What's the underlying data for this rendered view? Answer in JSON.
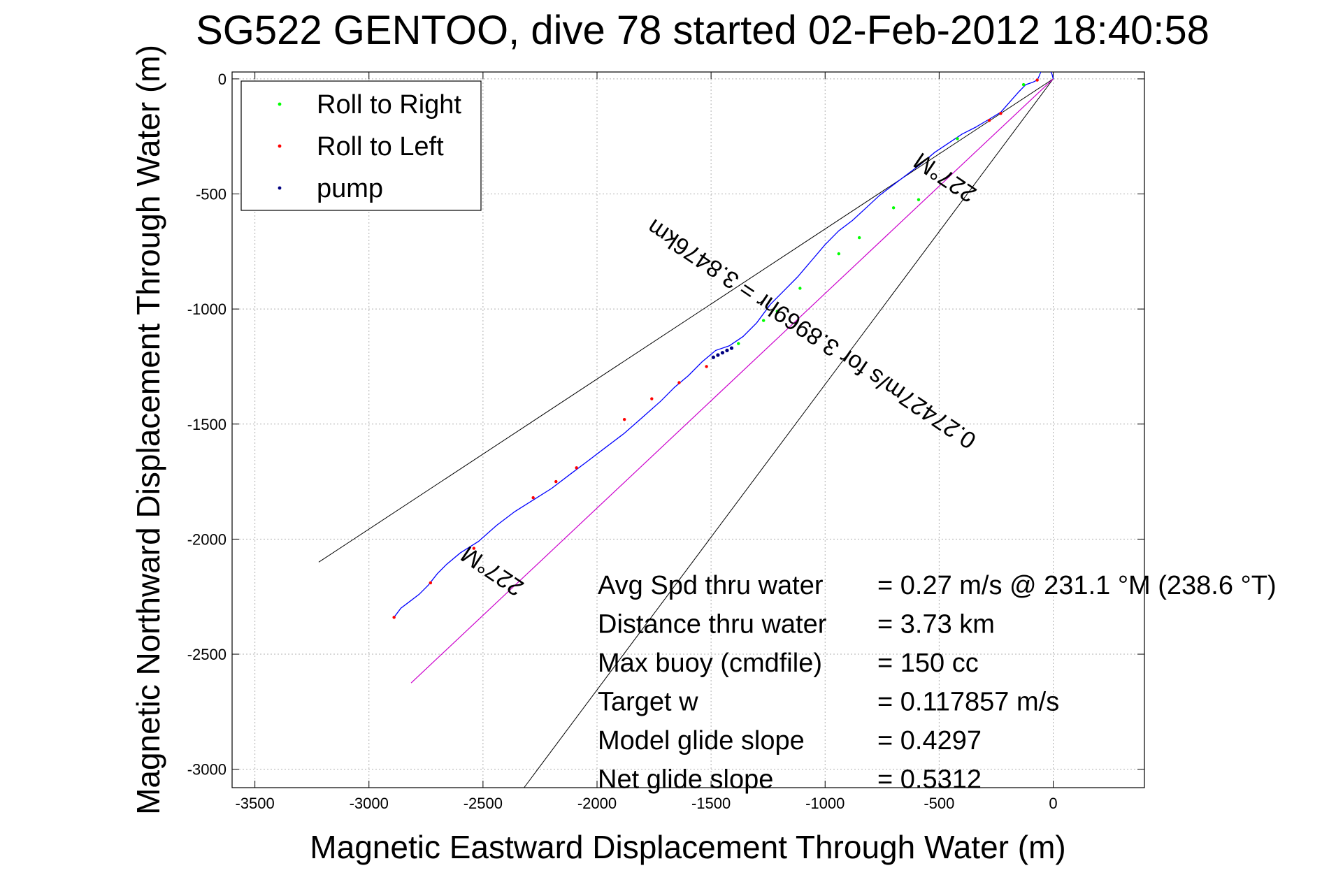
{
  "chart_data": {
    "type": "line",
    "title": "SG522 GENTOO, dive 78 started 02-Feb-2012 18:40:58",
    "xlabel": "Magnetic Eastward Displacement Through Water (m)",
    "ylabel": "Magnetic Northward Displacement Through Water (m)",
    "xlim": [
      -3600,
      400
    ],
    "ylim": [
      -3080,
      30
    ],
    "xticks": [
      -3500,
      -3000,
      -2500,
      -2000,
      -1500,
      -1000,
      -500,
      0
    ],
    "yticks": [
      0,
      -500,
      -1000,
      -1500,
      -2000,
      -2500,
      -3000
    ],
    "grid": true,
    "legend_position": "top-left",
    "legend": [
      {
        "label": "Roll to Right",
        "color": "#00ff00"
      },
      {
        "label": "Roll to Left",
        "color": "#ff0000"
      },
      {
        "label": "pump",
        "color": "#000080"
      }
    ],
    "track": {
      "color": "#0000ff",
      "points": [
        [
          0,
          0
        ],
        [
          -5,
          20
        ],
        [
          -15,
          40
        ],
        [
          -30,
          50
        ],
        [
          -45,
          45
        ],
        [
          -55,
          30
        ],
        [
          -60,
          15
        ],
        [
          -70,
          -5
        ],
        [
          -90,
          -15
        ],
        [
          -120,
          -25
        ],
        [
          -150,
          -55
        ],
        [
          -190,
          -100
        ],
        [
          -230,
          -145
        ],
        [
          -280,
          -175
        ],
        [
          -340,
          -210
        ],
        [
          -400,
          -240
        ],
        [
          -460,
          -280
        ],
        [
          -520,
          -320
        ],
        [
          -580,
          -370
        ],
        [
          -640,
          -415
        ],
        [
          -700,
          -460
        ],
        [
          -760,
          -505
        ],
        [
          -820,
          -560
        ],
        [
          -880,
          -615
        ],
        [
          -940,
          -660
        ],
        [
          -1000,
          -720
        ],
        [
          -1060,
          -790
        ],
        [
          -1120,
          -860
        ],
        [
          -1180,
          -920
        ],
        [
          -1240,
          -980
        ],
        [
          -1300,
          -1060
        ],
        [
          -1360,
          -1120
        ],
        [
          -1420,
          -1160
        ],
        [
          -1480,
          -1180
        ],
        [
          -1540,
          -1230
        ],
        [
          -1600,
          -1290
        ],
        [
          -1660,
          -1340
        ],
        [
          -1720,
          -1400
        ],
        [
          -1800,
          -1470
        ],
        [
          -1880,
          -1540
        ],
        [
          -1960,
          -1600
        ],
        [
          -2040,
          -1660
        ],
        [
          -2120,
          -1720
        ],
        [
          -2200,
          -1780
        ],
        [
          -2280,
          -1830
        ],
        [
          -2360,
          -1880
        ],
        [
          -2440,
          -1940
        ],
        [
          -2520,
          -2010
        ],
        [
          -2600,
          -2060
        ],
        [
          -2660,
          -2110
        ],
        [
          -2700,
          -2150
        ],
        [
          -2740,
          -2200
        ],
        [
          -2780,
          -2240
        ],
        [
          -2820,
          -2270
        ],
        [
          -2860,
          -2300
        ],
        [
          -2890,
          -2340
        ]
      ]
    },
    "roll_right_points": [
      [
        -20,
        45
      ],
      [
        -40,
        50
      ],
      [
        -60,
        35
      ],
      [
        -130,
        -25
      ],
      [
        -420,
        -260
      ],
      [
        -590,
        -525
      ],
      [
        -700,
        -560
      ],
      [
        -850,
        -690
      ],
      [
        -940,
        -760
      ],
      [
        -1110,
        -910
      ],
      [
        -1210,
        -1010
      ],
      [
        -1270,
        -1050
      ],
      [
        -1380,
        -1150
      ]
    ],
    "roll_left_points": [
      [
        -70,
        -5
      ],
      [
        -230,
        -150
      ],
      [
        -280,
        -180
      ],
      [
        -1520,
        -1250
      ],
      [
        -1640,
        -1320
      ],
      [
        -1760,
        -1390
      ],
      [
        -1880,
        -1480
      ],
      [
        -2090,
        -1690
      ],
      [
        -2180,
        -1750
      ],
      [
        -2280,
        -1820
      ],
      [
        -2540,
        -2040
      ],
      [
        -2730,
        -2190
      ],
      [
        -2890,
        -2340
      ]
    ],
    "pump_points": [
      [
        -1410,
        -1170
      ],
      [
        -1430,
        -1180
      ],
      [
        -1450,
        -1190
      ],
      [
        -1470,
        -1200
      ],
      [
        -1490,
        -1210
      ]
    ],
    "direction_line": {
      "color": "#cc00cc",
      "from": [
        0,
        0
      ],
      "to": [
        -2815,
        -2625
      ]
    },
    "envelope_lines": [
      {
        "color": "#000000",
        "from": [
          0,
          0
        ],
        "to": [
          -3220,
          -2100
        ]
      },
      {
        "color": "#000000",
        "from": [
          0,
          0
        ],
        "to": [
          -2320,
          -3080
        ]
      }
    ],
    "annotations": [
      {
        "text": "227°M",
        "x": -2440,
        "y": -2110,
        "angle": 214
      },
      {
        "text": "227°M",
        "x": -455,
        "y": -400,
        "angle": 214
      },
      {
        "text": "0.27427m/s for 3.8969hr = 3.8476km",
        "x": -1040,
        "y": -1080,
        "angle": 214
      }
    ],
    "stats": [
      {
        "label": "Avg Spd thru water",
        "value": "=  0.27 m/s @ 231.1 °M (238.6 °T)"
      },
      {
        "label": "Distance thru water",
        "value": "=  3.73 km"
      },
      {
        "label": "Max buoy (cmdfile)",
        "value": "= 150 cc"
      },
      {
        "label": "Target w",
        "value": "= 0.117857 m/s"
      },
      {
        "label": "Model glide slope",
        "value": "= 0.4297"
      },
      {
        "label": "Net glide slope",
        "value": "= 0.5312"
      }
    ]
  }
}
